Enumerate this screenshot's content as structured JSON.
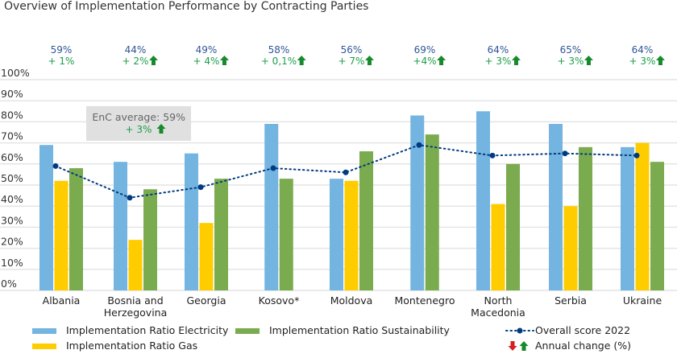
{
  "chart_data": {
    "type": "bar",
    "title": "Overview of Implementation Performance by Contracting Parties",
    "categories": [
      "Albania",
      "Bosnia and Herzegovina",
      "Georgia",
      "Kosovo*",
      "Moldova",
      "Montenegro",
      "North Macedonia",
      "Serbia",
      "Ukraine"
    ],
    "category_lines": [
      [
        "Albania"
      ],
      [
        "Bosnia and",
        "Herzegovina"
      ],
      [
        "Georgia"
      ],
      [
        "Kosovo*"
      ],
      [
        "Moldova"
      ],
      [
        "Montenegro"
      ],
      [
        "North",
        "Macedonia"
      ],
      [
        "Serbia"
      ],
      [
        "Ukraine"
      ]
    ],
    "series": [
      {
        "name": "Implementation Ratio Electricity",
        "type": "bar",
        "color": "#74b4e0",
        "values": [
          69,
          61,
          65,
          79,
          53,
          83,
          85,
          79,
          68
        ]
      },
      {
        "name": "Implementation Ratio Gas",
        "type": "bar",
        "color": "#ffcc00",
        "values": [
          52,
          24,
          32,
          null,
          52,
          null,
          41,
          40,
          70
        ]
      },
      {
        "name": "Implementation Ratio Sustainability",
        "type": "bar",
        "color": "#7aab4f",
        "values": [
          58,
          48,
          53,
          53,
          66,
          74,
          60,
          68,
          61
        ]
      },
      {
        "name": "Overall score 2022",
        "type": "line",
        "style": "dotted",
        "color": "#003a80",
        "values": [
          59,
          44,
          49,
          58,
          56,
          69,
          64,
          65,
          64
        ]
      }
    ],
    "score_labels": [
      "59%",
      "44%",
      "49%",
      "58%",
      "56%",
      "69%",
      "64%",
      "65%",
      "64%"
    ],
    "change_labels": [
      "+ 1%",
      "+ 2%",
      "+ 4%",
      "+ 0,1%",
      "+ 7%",
      "+4%",
      "+ 3%",
      "+ 3%",
      "+ 3%"
    ],
    "change_arrows": [
      null,
      "up",
      "up",
      "up",
      "up",
      "up",
      "up",
      "up",
      "up"
    ],
    "yticks": [
      "0%",
      "10%",
      "20%",
      "30%",
      "40%",
      "50%",
      "60%",
      "70%",
      "80%",
      "90%",
      "100%"
    ],
    "ylim": [
      0,
      100
    ],
    "grid": true,
    "legend_position": "bottom",
    "annotation": {
      "label": "EnC average: 59%",
      "change": "+ 3%",
      "arrow": "up"
    },
    "legend_extra": {
      "label": "Annual change (%)",
      "icons": [
        "arrow-down-red",
        "arrow-up-green"
      ]
    },
    "colors": {
      "score_text": "#2f5597",
      "change_text": "#1e9e4a",
      "arrow_up": "#178a2c",
      "arrow_down": "#d62020",
      "grid": "#e4e4e4",
      "annotation_bg": "#e0e0e0"
    }
  }
}
